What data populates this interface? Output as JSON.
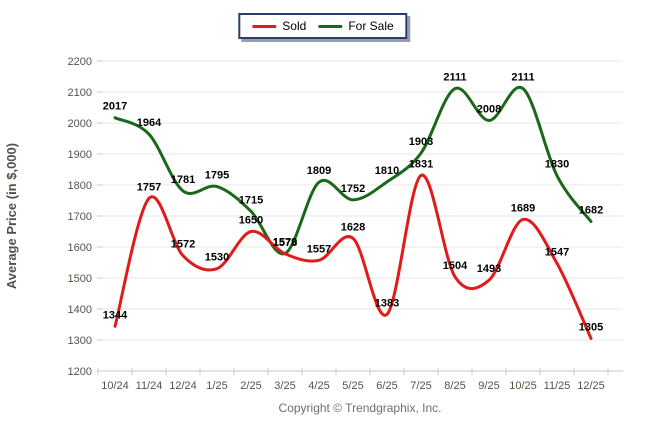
{
  "legend": {
    "items": [
      {
        "label": "Sold",
        "color": "#e01b1b"
      },
      {
        "label": "For Sale",
        "color": "#1a691a"
      }
    ]
  },
  "footer": {
    "copyright": "Copyright © Trendgraphix, Inc."
  },
  "chart_data": {
    "type": "line",
    "title": "",
    "xlabel": "",
    "ylabel": "Average Price (in $,000)",
    "categories": [
      "10/24",
      "11/24",
      "12/24",
      "1/25",
      "2/25",
      "3/25",
      "4/25",
      "5/25",
      "6/25",
      "7/25",
      "8/25",
      "9/25",
      "10/25",
      "11/25",
      "12/25"
    ],
    "series": [
      {
        "name": "Sold",
        "color": "#e01b1b",
        "values": [
          1344,
          1757,
          1572,
          1530,
          1650,
          1578,
          1557,
          1628,
          1383,
          1831,
          1504,
          1493,
          1689,
          1547,
          1305
        ]
      },
      {
        "name": "For Sale",
        "color": "#1a691a",
        "values": [
          2017,
          1964,
          1781,
          1795,
          1715,
          1579,
          1809,
          1752,
          1810,
          1903,
          2111,
          2008,
          2111,
          1830,
          1682
        ]
      }
    ],
    "ylim": [
      1200,
      2200
    ],
    "ytick_step": 100,
    "grid": true,
    "data_labels": true,
    "legend_position": "top-center"
  }
}
